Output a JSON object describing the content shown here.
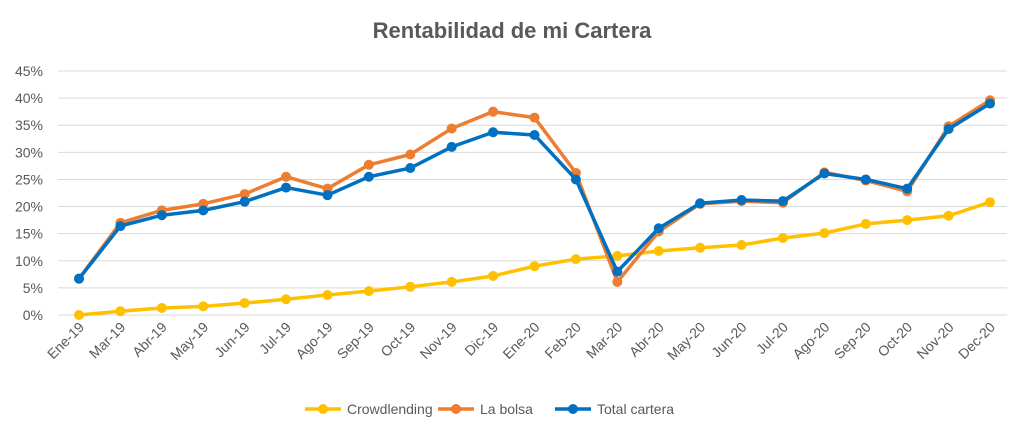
{
  "chart_data": {
    "type": "line",
    "title": "Rentabilidad de mi Cartera",
    "xlabel": "",
    "ylabel": "",
    "categories": [
      "Ene-19",
      "Mar-19",
      "Abr-19",
      "May-19",
      "Jun-19",
      "Jul-19",
      "Ago-19",
      "Sep-19",
      "Oct-19",
      "Nov-19",
      "Dic-19",
      "Ene-20",
      "Feb-20",
      "Mar-20",
      "Abr-20",
      "May-20",
      "Jun-20",
      "Jul-20",
      "Ago-20",
      "Sep-20",
      "Oct-20",
      "Nov-20",
      "Dec-20"
    ],
    "ylim": [
      0,
      45
    ],
    "yticks": [
      "0%",
      "5%",
      "10%",
      "15%",
      "20%",
      "25%",
      "30%",
      "35%",
      "40%",
      "45%"
    ],
    "grid": true,
    "legend_position": "bottom",
    "series": [
      {
        "name": "Crowdlending",
        "color": "#FFC000",
        "values": [
          0,
          0.7,
          1.3,
          1.6,
          2.2,
          2.9,
          3.7,
          4.4,
          5.2,
          6.1,
          7.2,
          9.0,
          10.3,
          10.9,
          11.8,
          12.4,
          12.9,
          14.2,
          15.1,
          16.8,
          17.5,
          18.3,
          20.8
        ]
      },
      {
        "name": "La bolsa",
        "color": "#ED7D31",
        "values": [
          6.7,
          17.0,
          19.3,
          20.5,
          22.3,
          25.5,
          23.3,
          27.7,
          29.6,
          34.4,
          37.5,
          36.4,
          26.2,
          6.1,
          15.4,
          20.5,
          21.0,
          20.7,
          26.3,
          24.8,
          22.8,
          34.8,
          39.6
        ]
      },
      {
        "name": "Total cartera",
        "color": "#0070C0",
        "values": [
          6.7,
          16.4,
          18.4,
          19.3,
          20.9,
          23.5,
          22.1,
          25.5,
          27.1,
          31.0,
          33.7,
          33.2,
          25.0,
          8.0,
          16.0,
          20.6,
          21.2,
          21.0,
          26.1,
          25.0,
          23.3,
          34.3,
          39.0
        ]
      }
    ]
  }
}
